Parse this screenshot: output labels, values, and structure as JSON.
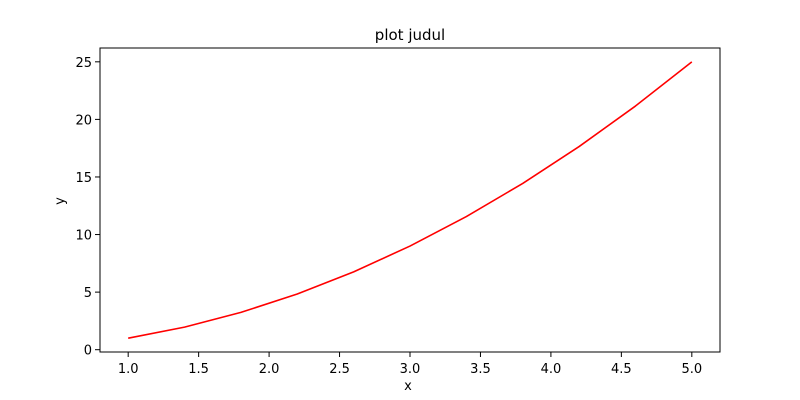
{
  "chart_data": {
    "type": "line",
    "title": "plot judul",
    "xlabel": "x",
    "ylabel": "y",
    "xlim": [
      0.8,
      5.2
    ],
    "ylim": [
      -0.2,
      26.2
    ],
    "xticks": [
      1.0,
      1.5,
      2.0,
      2.5,
      3.0,
      3.5,
      4.0,
      4.5,
      5.0
    ],
    "xtick_labels": [
      "1.0",
      "1.5",
      "2.0",
      "2.5",
      "3.0",
      "3.5",
      "4.0",
      "4.5",
      "5.0"
    ],
    "yticks": [
      0,
      5,
      10,
      15,
      20,
      25
    ],
    "ytick_labels": [
      "0",
      "5",
      "10",
      "15",
      "20",
      "25"
    ],
    "grid": false,
    "series": [
      {
        "color": "#ff0000",
        "x": [
          1.0,
          1.4,
          1.8,
          2.2,
          2.6,
          3.0,
          3.4,
          3.8,
          4.2,
          4.6,
          5.0
        ],
        "y": [
          1.0,
          1.96,
          3.24,
          4.84,
          6.76,
          9.0,
          11.56,
          14.44,
          17.64,
          21.16,
          25.0
        ]
      }
    ]
  }
}
